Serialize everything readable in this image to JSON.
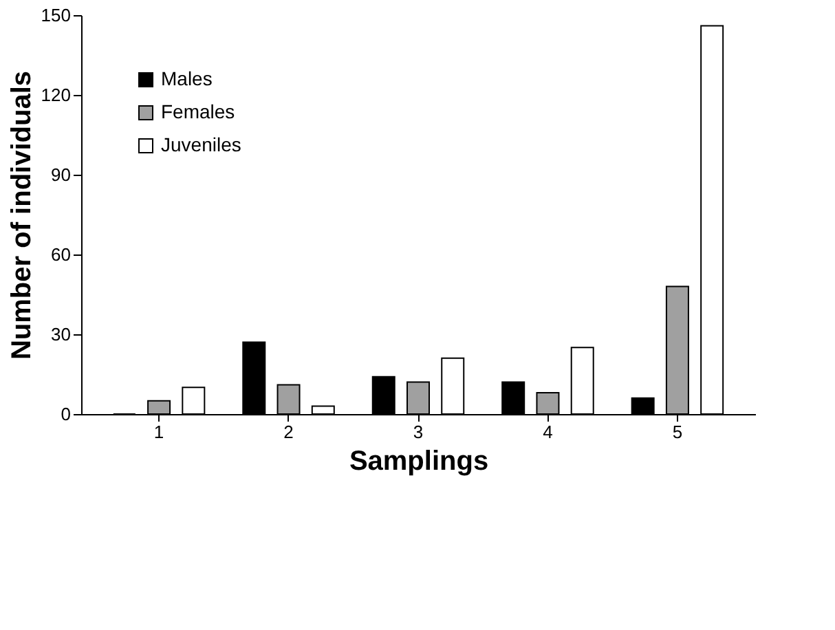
{
  "chart_data": {
    "type": "bar",
    "xlabel": "Samplings",
    "ylabel": "Number of individuals",
    "categories": [
      "1",
      "2",
      "3",
      "4",
      "5"
    ],
    "series": [
      {
        "name": "Males",
        "color": "#000000",
        "values": [
          0,
          27,
          14,
          12,
          6
        ]
      },
      {
        "name": "Females",
        "color": "#a0a0a0",
        "values": [
          5,
          11,
          12,
          8,
          48
        ]
      },
      {
        "name": "Juveniles",
        "color": "#ffffff",
        "values": [
          10,
          3,
          21,
          25,
          146
        ]
      }
    ],
    "ylim": [
      0,
      150
    ],
    "yticks": [
      0,
      30,
      60,
      90,
      120,
      150
    ],
    "grid": false,
    "legend": "top left"
  }
}
